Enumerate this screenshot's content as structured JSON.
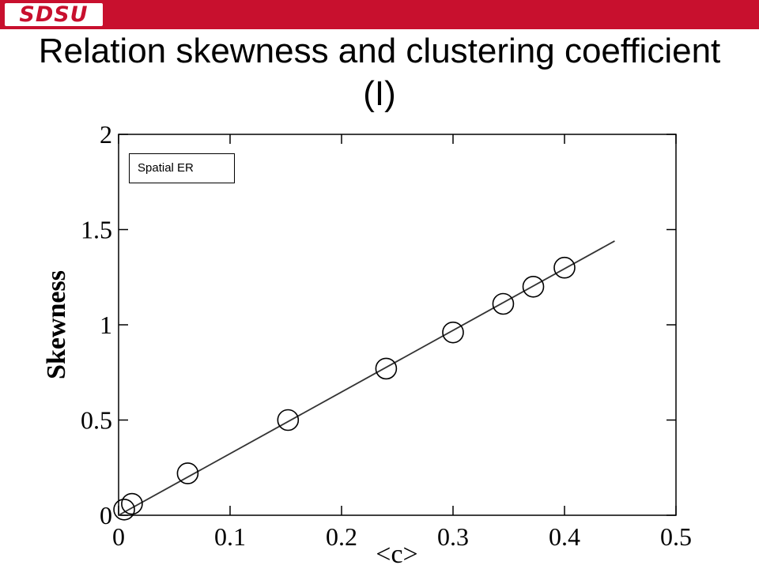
{
  "header": {
    "logo_text": "SDSU",
    "title": "Relation skewness and clustering coefficient (I)"
  },
  "colors": {
    "brand_red": "#c8102e",
    "marker_stroke": "#000000"
  },
  "chart_data": {
    "type": "scatter",
    "title": "",
    "xlabel": "<c>",
    "ylabel": "Skewness",
    "xlim": [
      0,
      0.5
    ],
    "ylim": [
      0,
      2
    ],
    "xticks": [
      "0",
      "0.1",
      "0.2",
      "0.3",
      "0.4",
      "0.5"
    ],
    "yticks": [
      "0",
      "0.5",
      "1",
      "1.5",
      "2"
    ],
    "legend_text": "Spatial ER",
    "legend_position": "top-left",
    "grid": false,
    "series": [
      {
        "marker": "open-circle",
        "x": [
          0.005,
          0.012,
          0.062,
          0.152,
          0.24,
          0.3,
          0.345,
          0.372,
          0.4
        ],
        "y": [
          0.03,
          0.06,
          0.22,
          0.5,
          0.77,
          0.96,
          1.11,
          1.2,
          1.3
        ]
      }
    ],
    "fit_line": {
      "x": [
        0,
        0.445
      ],
      "y": [
        0,
        1.44
      ]
    }
  }
}
